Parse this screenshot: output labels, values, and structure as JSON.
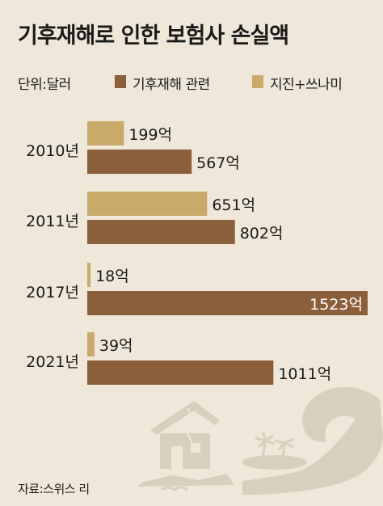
{
  "title": "기후재해로 인한 보험사 손실액",
  "unit_label": "단위:달러",
  "source": "자료:스위스 리",
  "colors": {
    "climate": "#8b5e3c",
    "quake": "#c8aa6a",
    "background": "#efe8da",
    "illustration": "#d6d1bd"
  },
  "icons": [
    "ruined-house-icon",
    "tsunami-island-icon"
  ],
  "chart_data": {
    "type": "bar",
    "orientation": "horizontal",
    "categories": [
      "2010년",
      "2011년",
      "2017년",
      "2021년"
    ],
    "series": [
      {
        "name": "지진+쓰나미",
        "values": [
          199,
          651,
          18,
          39
        ],
        "labels": [
          "199억",
          "651억",
          "18억",
          "39억"
        ],
        "color": "#c8aa6a"
      },
      {
        "name": "기후재해 관련",
        "values": [
          567,
          802,
          1523,
          1011
        ],
        "labels": [
          "567억",
          "802억",
          "1523억",
          "1011억"
        ],
        "color": "#8b5e3c"
      }
    ],
    "legend_order": [
      "기후재해 관련",
      "지진+쓰나미"
    ],
    "legend_position": "top",
    "xlim": [
      0,
      1523
    ],
    "grid": false
  }
}
